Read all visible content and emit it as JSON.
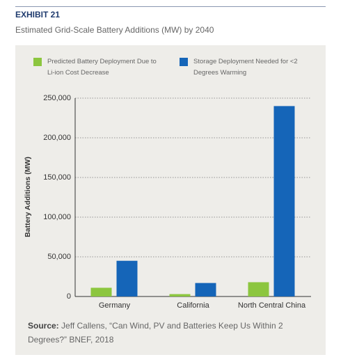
{
  "header": {
    "exhibit": "EXHIBIT 21",
    "subtitle": "Estimated Grid-Scale Battery Additions (MW) by 2040"
  },
  "chart_data": {
    "type": "bar",
    "categories": [
      "Germany",
      "California",
      "North Central China"
    ],
    "series": [
      {
        "name": "Predicted Battery Deployment Due to Li-ion Cost Decrease",
        "color": "#8cc63f",
        "values": [
          11000,
          3000,
          18000
        ]
      },
      {
        "name": "Storage Deployment Needed for <2 Degrees Warming",
        "color": "#1565b8",
        "values": [
          45000,
          17000,
          240000
        ]
      }
    ],
    "y_label": "Battery Additions (MW)",
    "ylim": [
      0,
      250000
    ],
    "yticks": [
      0,
      {
        "value": 50000,
        "label": "50,000"
      },
      {
        "value": 100000,
        "label": "100,000"
      },
      {
        "value": 150000,
        "label": "150,000"
      },
      {
        "value": 200000,
        "label": "200,000"
      },
      {
        "value": 250000,
        "label": "250,000"
      }
    ],
    "grid": true
  },
  "source": {
    "label": "Source:",
    "text": "Jeff Callens, “Can Wind, PV and Batteries Keep Us Within 2 Degrees?” BNEF, 2018"
  }
}
